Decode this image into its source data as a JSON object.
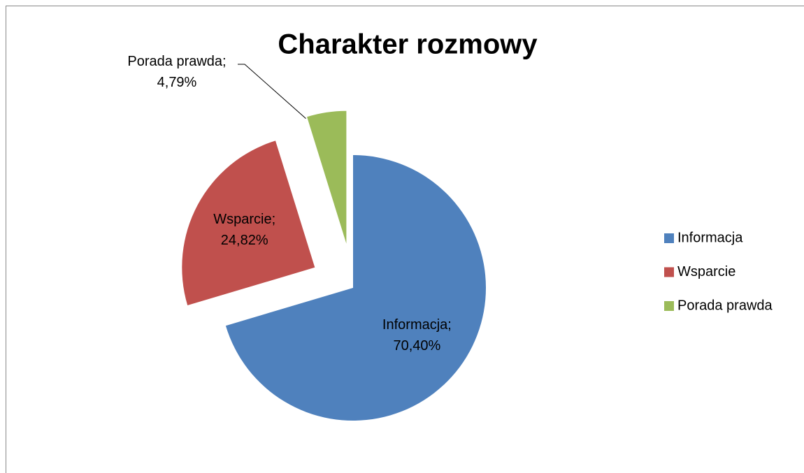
{
  "chart_data": {
    "type": "pie",
    "title": "Charakter rozmowy",
    "categories": [
      "Informacja",
      "Wsparcie",
      "Porada prawda"
    ],
    "values": [
      70.4,
      24.82,
      4.79
    ],
    "value_labels": [
      "Informacja;\n70,40%",
      "Wsparcie;\n24,82%",
      "Porada prawda;\n4,79%"
    ],
    "colors": [
      "#4f81bd",
      "#c0504d",
      "#9bbb59"
    ],
    "legend": "right"
  }
}
